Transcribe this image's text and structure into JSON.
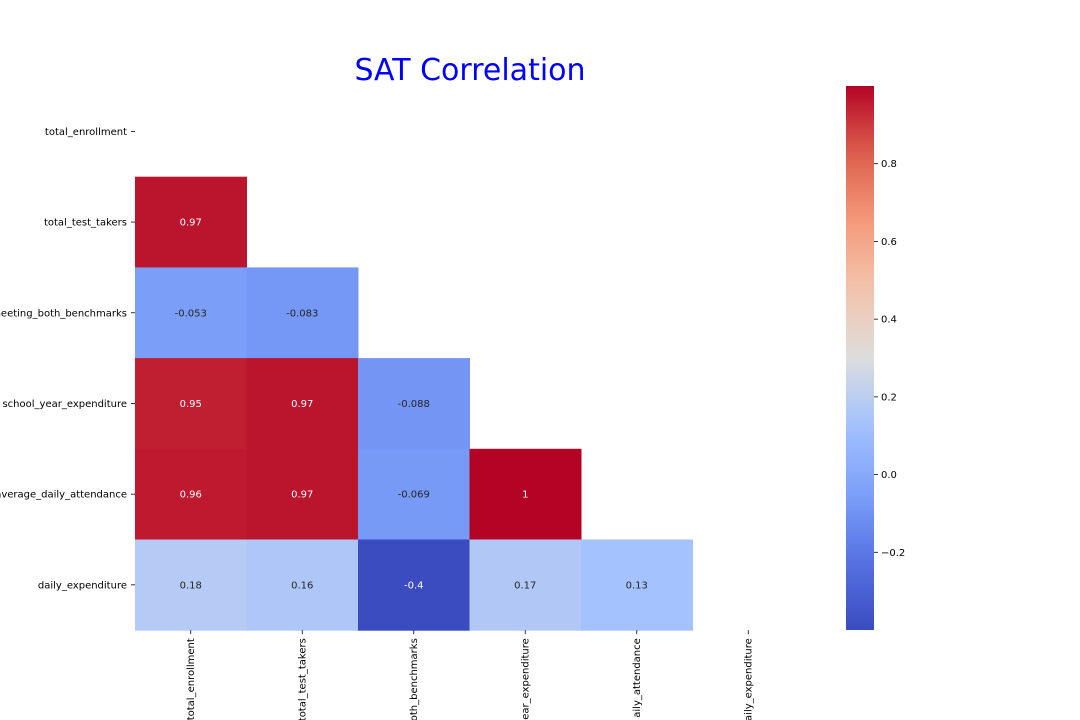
{
  "chart_data": {
    "type": "heatmap",
    "title": "SAT Correlation",
    "row_labels": [
      "total_enrollment",
      "total_test_takers",
      "meeting_both_benchmarks",
      "school_year_expenditure",
      "average_daily_attendance",
      "daily_expenditure"
    ],
    "col_labels": [
      "total_enrollment",
      "total_test_takers",
      "meeting_both_benchmarks",
      "school_year_expenditure",
      "average_daily_attendance",
      "daily_expenditure"
    ],
    "shown_labels": {
      "rows": [
        "total_enrollment",
        "total_test_takers",
        "neeting_both_benchmarks",
        "school_year_expenditure",
        "average_daily_attendance",
        "daily_expenditure"
      ],
      "cols": [
        "total_enrollment",
        "total_test_takers",
        "oth_benchmarks",
        "ear_expenditure",
        "aily_attendance",
        "aily_expenditure"
      ]
    },
    "mask": "upper_triangle_including_diagonal",
    "values": [
      [
        null,
        null,
        null,
        null,
        null,
        null
      ],
      [
        0.97,
        null,
        null,
        null,
        null,
        null
      ],
      [
        -0.053,
        -0.083,
        null,
        null,
        null,
        null
      ],
      [
        0.95,
        0.97,
        -0.088,
        null,
        null,
        null
      ],
      [
        0.96,
        0.97,
        -0.069,
        1,
        null,
        null
      ],
      [
        0.18,
        0.16,
        -0.4,
        0.17,
        0.13,
        null
      ]
    ],
    "value_labels": [
      [
        null,
        null,
        null,
        null,
        null,
        null
      ],
      [
        "0.97",
        null,
        null,
        null,
        null,
        null
      ],
      [
        "-0.053",
        "-0.083",
        null,
        null,
        null,
        null
      ],
      [
        "0.95",
        "0.97",
        "-0.088",
        null,
        null,
        null
      ],
      [
        "0.96",
        "0.97",
        "-0.069",
        "1",
        null,
        null
      ],
      [
        "0.18",
        "0.16",
        "-0.4",
        "0.17",
        "0.13",
        null
      ]
    ],
    "colormap": "coolwarm",
    "colorbar": {
      "vmin": -0.4,
      "vmax": 1,
      "ticks": [
        0.8,
        0.6,
        0.4,
        0.2,
        0.0,
        -0.2
      ],
      "tick_labels": [
        "0.8",
        "0.6",
        "0.4",
        "0.2",
        "0.0",
        "−0.2"
      ]
    },
    "colors": {
      "title": "#0000ff"
    }
  }
}
